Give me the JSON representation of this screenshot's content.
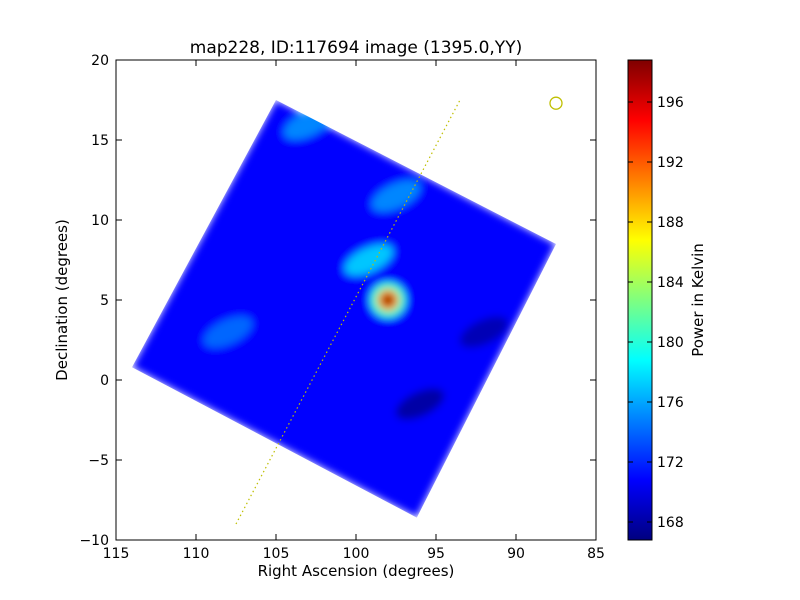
{
  "chart_data": {
    "type": "heatmap",
    "title": "map228, ID:117694 image (1395.0,YY)",
    "xlabel": "Right Ascension (degrees)",
    "ylabel": "Declination (degrees)",
    "xlim": [
      115,
      85
    ],
    "ylim": [
      -10,
      20
    ],
    "x_ticks": [
      115,
      110,
      105,
      100,
      95,
      90,
      85
    ],
    "x_tick_labels": [
      "115",
      "110",
      "105",
      "100",
      "95",
      "90",
      "85"
    ],
    "y_ticks": [
      20,
      15,
      10,
      5,
      0,
      -5,
      -10
    ],
    "y_tick_labels": [
      "20",
      "15",
      "10",
      "5",
      "0",
      "−5",
      "−10"
    ],
    "colorbar": {
      "label": "Power in Kelvin",
      "range": [
        166.8,
        198.8
      ],
      "ticks": [
        196,
        192,
        188,
        184,
        180,
        176,
        172,
        168
      ],
      "tick_labels": [
        "196",
        "192",
        "188",
        "184",
        "180",
        "176",
        "172",
        "168"
      ],
      "colormap": "jet"
    },
    "map_region_corners_deg": [
      {
        "ra": 105.0,
        "dec": 17.5
      },
      {
        "ra": 87.5,
        "dec": 8.5
      },
      {
        "ra": 96.2,
        "dec": -8.6
      },
      {
        "ra": 114.0,
        "dec": 0.8
      }
    ],
    "background_level": 171,
    "features": [
      {
        "ra": 98.0,
        "dec": 5.0,
        "peak": 198,
        "note": "bright source"
      },
      {
        "ra": 99.2,
        "dec": 7.5,
        "peak": 177
      },
      {
        "ra": 103.0,
        "dec": 16.0,
        "peak": 175
      },
      {
        "ra": 97.5,
        "dec": 11.5,
        "peak": 175
      },
      {
        "ra": 108.0,
        "dec": 3.0,
        "peak": 174
      },
      {
        "ra": 92.0,
        "dec": 3.0,
        "peak": 168.5
      },
      {
        "ra": 96.0,
        "dec": -1.5,
        "peak": 168
      }
    ],
    "overlays": [
      {
        "type": "dotted-line",
        "color": "#bfbf00",
        "from": {
          "ra": 107.5,
          "dec": -9.0
        },
        "to": {
          "ra": 93.5,
          "dec": 17.5
        }
      },
      {
        "type": "circle-marker",
        "color": "#bfbf00",
        "at": {
          "ra": 87.5,
          "dec": 17.3
        }
      }
    ]
  }
}
